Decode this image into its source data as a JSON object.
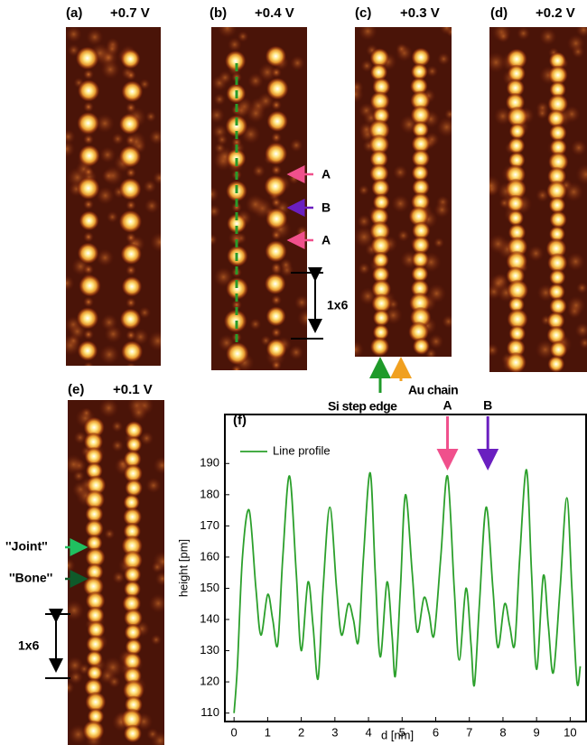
{
  "panels": [
    {
      "label": "(a)",
      "bias": "+0.7 V"
    },
    {
      "label": "(b)",
      "bias": "+0.4 V",
      "annotations": [
        "A",
        "B",
        "A",
        "1x6"
      ]
    },
    {
      "label": "(c)",
      "bias": "+0.3 V",
      "annotations": [
        "Si step edge",
        "Au chain"
      ]
    },
    {
      "label": "(d)",
      "bias": "+0.2 V"
    },
    {
      "label": "(e)",
      "bias": "+0.1 V",
      "annotations": [
        "''Joint''",
        "''Bone''",
        "1x6"
      ]
    }
  ],
  "chart_data": {
    "type": "line",
    "title": "(f)",
    "x_label": "d [nm]",
    "y_label": "height [pm]",
    "x": [
      0,
      0.1,
      0.25,
      0.45,
      0.65,
      0.8,
      1.0,
      1.15,
      1.3,
      1.45,
      1.65,
      1.85,
      2.0,
      2.2,
      2.35,
      2.5,
      2.65,
      2.85,
      3.05,
      3.2,
      3.4,
      3.55,
      3.7,
      3.85,
      4.05,
      4.2,
      4.35,
      4.55,
      4.7,
      4.8,
      4.95,
      5.1,
      5.3,
      5.45,
      5.65,
      5.8,
      5.95,
      6.15,
      6.35,
      6.55,
      6.7,
      6.9,
      7.05,
      7.15,
      7.3,
      7.5,
      7.7,
      7.85,
      8.05,
      8.2,
      8.35,
      8.5,
      8.7,
      8.85,
      9.0,
      9.2,
      9.35,
      9.5,
      9.7,
      9.9,
      10.05,
      10.2,
      10.3
    ],
    "series": [
      {
        "name": "Line profile",
        "color": "#2ca02c",
        "values": [
          110,
          125,
          160,
          175,
          150,
          135,
          148,
          140,
          132,
          160,
          186,
          155,
          130,
          152,
          138,
          121,
          150,
          176,
          150,
          135,
          145,
          140,
          133,
          160,
          187,
          155,
          128,
          152,
          135,
          122,
          150,
          180,
          155,
          136,
          147,
          142,
          135,
          160,
          186,
          150,
          127,
          150,
          132,
          119,
          145,
          176,
          150,
          131,
          145,
          138,
          132,
          160,
          188,
          155,
          124,
          154,
          138,
          123,
          150,
          179,
          150,
          120,
          125
        ]
      }
    ],
    "xlim": [
      -0.3,
      10.5
    ],
    "ylim": [
      107,
      206
    ],
    "xticks": [
      0,
      1,
      2,
      3,
      4,
      5,
      6,
      7,
      8,
      9,
      10
    ],
    "yticks": [
      110,
      120,
      130,
      140,
      150,
      160,
      170,
      180,
      190
    ],
    "legend": "upper left",
    "annotations": [
      {
        "text": "A",
        "x": 6.35,
        "color": "#f0508c"
      },
      {
        "text": "B",
        "x": 7.55,
        "color": "#6a1fc0"
      }
    ]
  }
}
